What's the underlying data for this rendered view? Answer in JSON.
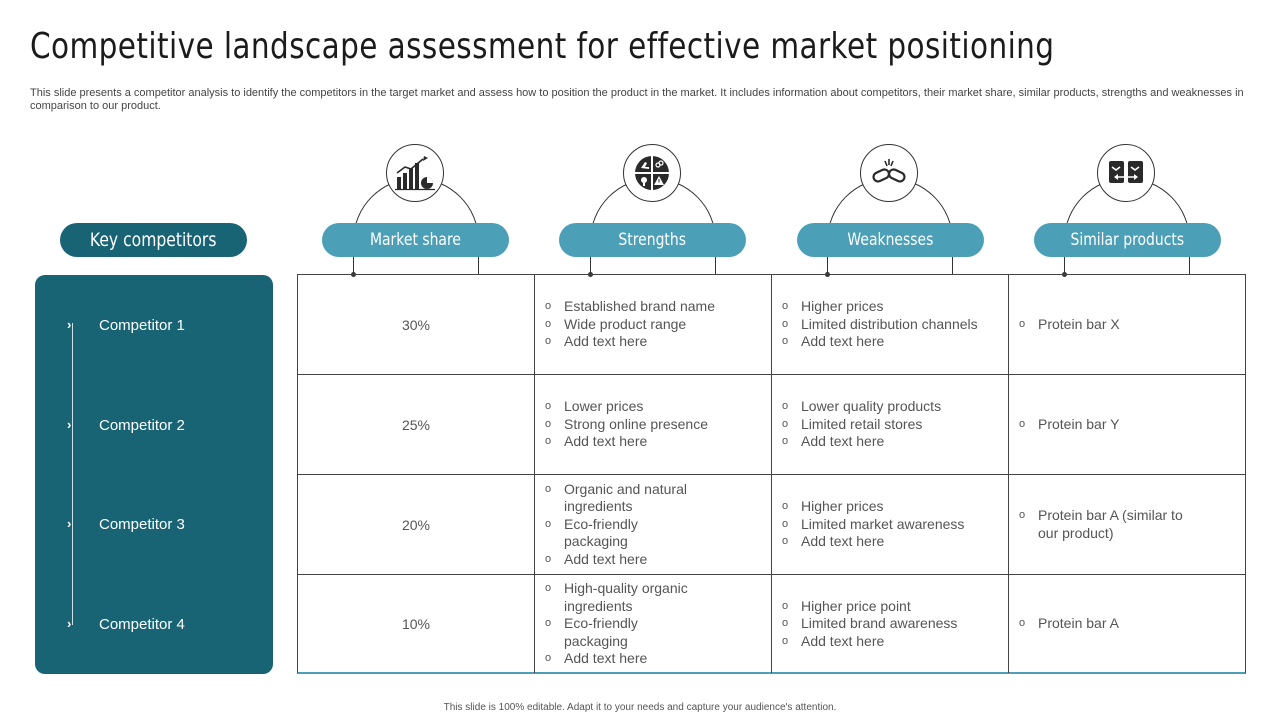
{
  "title": "Competitive landscape assessment for effective market positioning",
  "subtitle": "This slide presents a competitor analysis to identify the competitors in the target market and assess how to position the product in the market. It includes information about competitors, their market share, similar products, strengths and weaknesses in comparison to our product.",
  "key_competitors_label": "Key competitors",
  "competitors": [
    "Competitor 1",
    "Competitor 2",
    "Competitor 3",
    "Competitor 4"
  ],
  "columns": [
    {
      "label": "Market share",
      "icon": "bar-chart-icon"
    },
    {
      "label": "Strengths",
      "icon": "strength-grid-icon"
    },
    {
      "label": "Weaknesses",
      "icon": "broken-chain-icon"
    },
    {
      "label": "Similar products",
      "icon": "compare-boxes-icon"
    }
  ],
  "rows": [
    {
      "market_share": "30%",
      "strengths": [
        "Established brand name",
        "Wide product range",
        "Add text here"
      ],
      "weaknesses": [
        "Higher prices",
        "Limited distribution channels",
        "Add text here"
      ],
      "similar_products": [
        "Protein bar X"
      ]
    },
    {
      "market_share": "25%",
      "strengths": [
        "Lower prices",
        "Strong online presence",
        "Add text here"
      ],
      "weaknesses": [
        "Lower quality products",
        "Limited retail stores",
        "Add text here"
      ],
      "similar_products": [
        "Protein bar Y"
      ]
    },
    {
      "market_share": "20%",
      "strengths": [
        "Organic and natural ingredients",
        "Eco-friendly packaging",
        "Add text here"
      ],
      "weaknesses": [
        "Higher prices",
        "Limited market awareness",
        "Add text here"
      ],
      "similar_products": [
        "Protein bar A (similar to our product)"
      ]
    },
    {
      "market_share": "10%",
      "strengths": [
        "High-quality organic ingredients",
        "Eco-friendly packaging",
        "Add text here"
      ],
      "weaknesses": [
        "Higher price point",
        "Limited brand awareness",
        "Add text here"
      ],
      "similar_products": [
        "Protein bar A"
      ]
    }
  ],
  "footer": "This slide is 100% editable. Adapt it to your needs and capture your audience's attention.",
  "colors": {
    "panel": "#186474",
    "header_pill": "#4b9fb7"
  }
}
